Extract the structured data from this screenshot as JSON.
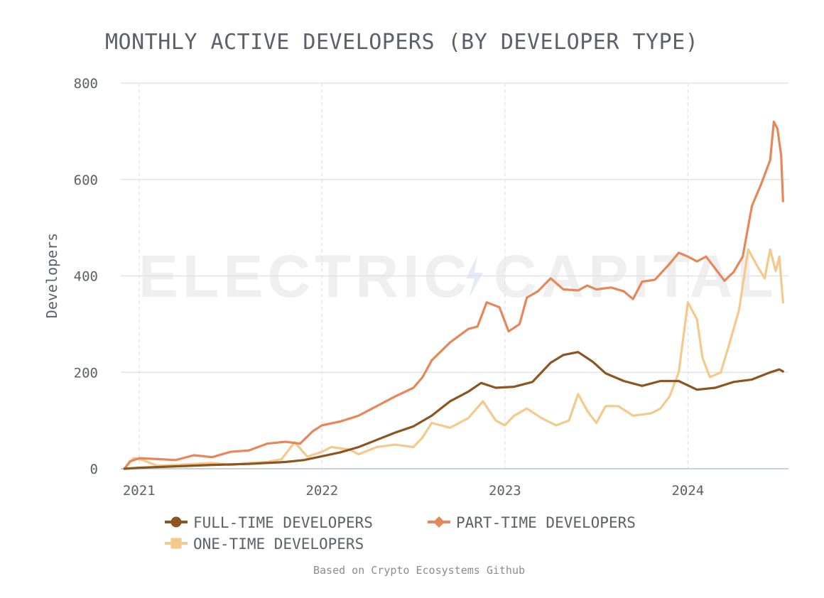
{
  "colors": {
    "full_time": "#8c5520",
    "part_time": "#e5875a",
    "one_time": "#f4c98b",
    "grid": "#e1e3e8",
    "axis": "#c9cfdc",
    "text": "#5d6069",
    "watermark": "#efefef",
    "watermark_bolt": "#e3ebf5"
  },
  "watermark": {
    "left": "ELECTRIC",
    "right": "CAPITAL"
  },
  "footnote": "Based on Crypto Ecosystems Github",
  "chart_data": {
    "type": "line",
    "title": "MONTHLY ACTIVE DEVELOPERS (BY DEVELOPER TYPE)",
    "xlabel": "",
    "ylabel": "Developers",
    "xlim": [
      2020.9,
      2024.55
    ],
    "ylim": [
      0,
      800
    ],
    "x_ticks": [
      2021,
      2022,
      2023,
      2024
    ],
    "x_tick_labels": [
      "2021",
      "2022",
      "2023",
      "2024"
    ],
    "y_ticks": [
      0,
      200,
      400,
      600,
      800
    ],
    "grid": {
      "horizontal": "solid",
      "vertical": "dashed"
    },
    "legend": "bottom",
    "series": [
      {
        "name": "FULL-TIME DEVELOPERS",
        "color_key": "full_time",
        "marker": "circle",
        "points": [
          [
            2020.92,
            0
          ],
          [
            2021.0,
            2
          ],
          [
            2021.2,
            5
          ],
          [
            2021.4,
            8
          ],
          [
            2021.6,
            10
          ],
          [
            2021.8,
            14
          ],
          [
            2021.9,
            18
          ],
          [
            2022.0,
            26
          ],
          [
            2022.1,
            34
          ],
          [
            2022.2,
            45
          ],
          [
            2022.3,
            60
          ],
          [
            2022.4,
            75
          ],
          [
            2022.5,
            88
          ],
          [
            2022.6,
            110
          ],
          [
            2022.7,
            140
          ],
          [
            2022.8,
            160
          ],
          [
            2022.87,
            178
          ],
          [
            2022.95,
            168
          ],
          [
            2023.05,
            170
          ],
          [
            2023.15,
            180
          ],
          [
            2023.25,
            220
          ],
          [
            2023.32,
            236
          ],
          [
            2023.4,
            242
          ],
          [
            2023.48,
            222
          ],
          [
            2023.55,
            198
          ],
          [
            2023.65,
            182
          ],
          [
            2023.75,
            172
          ],
          [
            2023.85,
            182
          ],
          [
            2023.95,
            182
          ],
          [
            2024.05,
            164
          ],
          [
            2024.15,
            168
          ],
          [
            2024.25,
            180
          ],
          [
            2024.35,
            185
          ],
          [
            2024.45,
            200
          ],
          [
            2024.5,
            206
          ],
          [
            2024.52,
            202
          ]
        ]
      },
      {
        "name": "PART-TIME DEVELOPERS",
        "color_key": "part_time",
        "marker": "diamond",
        "points": [
          [
            2020.92,
            0
          ],
          [
            2020.95,
            15
          ],
          [
            2021.0,
            22
          ],
          [
            2021.1,
            20
          ],
          [
            2021.2,
            18
          ],
          [
            2021.3,
            28
          ],
          [
            2021.4,
            24
          ],
          [
            2021.5,
            35
          ],
          [
            2021.6,
            38
          ],
          [
            2021.7,
            52
          ],
          [
            2021.8,
            56
          ],
          [
            2021.88,
            52
          ],
          [
            2021.95,
            78
          ],
          [
            2022.0,
            90
          ],
          [
            2022.1,
            98
          ],
          [
            2022.2,
            110
          ],
          [
            2022.3,
            130
          ],
          [
            2022.4,
            150
          ],
          [
            2022.5,
            168
          ],
          [
            2022.55,
            190
          ],
          [
            2022.6,
            225
          ],
          [
            2022.7,
            262
          ],
          [
            2022.8,
            290
          ],
          [
            2022.85,
            295
          ],
          [
            2022.9,
            345
          ],
          [
            2022.97,
            335
          ],
          [
            2023.02,
            285
          ],
          [
            2023.08,
            300
          ],
          [
            2023.12,
            355
          ],
          [
            2023.18,
            368
          ],
          [
            2023.25,
            395
          ],
          [
            2023.32,
            372
          ],
          [
            2023.4,
            370
          ],
          [
            2023.45,
            380
          ],
          [
            2023.5,
            372
          ],
          [
            2023.58,
            376
          ],
          [
            2023.65,
            368
          ],
          [
            2023.7,
            352
          ],
          [
            2023.75,
            388
          ],
          [
            2023.82,
            392
          ],
          [
            2023.9,
            425
          ],
          [
            2023.95,
            448
          ],
          [
            2024.0,
            440
          ],
          [
            2024.05,
            430
          ],
          [
            2024.1,
            440
          ],
          [
            2024.15,
            415
          ],
          [
            2024.2,
            390
          ],
          [
            2024.25,
            408
          ],
          [
            2024.3,
            440
          ],
          [
            2024.35,
            545
          ],
          [
            2024.4,
            590
          ],
          [
            2024.45,
            640
          ],
          [
            2024.47,
            720
          ],
          [
            2024.49,
            705
          ],
          [
            2024.51,
            650
          ],
          [
            2024.52,
            555
          ]
        ]
      },
      {
        "name": "ONE-TIME DEVELOPERS",
        "color_key": "one_time",
        "marker": "square",
        "points": [
          [
            2020.92,
            0
          ],
          [
            2020.97,
            22
          ],
          [
            2021.02,
            18
          ],
          [
            2021.1,
            6
          ],
          [
            2021.2,
            8
          ],
          [
            2021.3,
            10
          ],
          [
            2021.4,
            12
          ],
          [
            2021.5,
            8
          ],
          [
            2021.6,
            12
          ],
          [
            2021.7,
            14
          ],
          [
            2021.78,
            20
          ],
          [
            2021.85,
            55
          ],
          [
            2021.92,
            25
          ],
          [
            2022.0,
            35
          ],
          [
            2022.05,
            45
          ],
          [
            2022.15,
            40
          ],
          [
            2022.2,
            30
          ],
          [
            2022.3,
            45
          ],
          [
            2022.4,
            50
          ],
          [
            2022.5,
            45
          ],
          [
            2022.55,
            65
          ],
          [
            2022.6,
            95
          ],
          [
            2022.7,
            85
          ],
          [
            2022.8,
            105
          ],
          [
            2022.88,
            140
          ],
          [
            2022.95,
            100
          ],
          [
            2023.0,
            90
          ],
          [
            2023.05,
            110
          ],
          [
            2023.12,
            125
          ],
          [
            2023.2,
            105
          ],
          [
            2023.28,
            90
          ],
          [
            2023.35,
            100
          ],
          [
            2023.4,
            155
          ],
          [
            2023.45,
            120
          ],
          [
            2023.5,
            95
          ],
          [
            2023.55,
            130
          ],
          [
            2023.62,
            130
          ],
          [
            2023.7,
            110
          ],
          [
            2023.8,
            115
          ],
          [
            2023.85,
            125
          ],
          [
            2023.9,
            150
          ],
          [
            2023.95,
            200
          ],
          [
            2024.0,
            345
          ],
          [
            2024.05,
            310
          ],
          [
            2024.08,
            230
          ],
          [
            2024.12,
            190
          ],
          [
            2024.18,
            200
          ],
          [
            2024.22,
            250
          ],
          [
            2024.28,
            330
          ],
          [
            2024.33,
            455
          ],
          [
            2024.38,
            420
          ],
          [
            2024.42,
            395
          ],
          [
            2024.45,
            455
          ],
          [
            2024.48,
            410
          ],
          [
            2024.5,
            440
          ],
          [
            2024.52,
            345
          ]
        ]
      }
    ]
  }
}
